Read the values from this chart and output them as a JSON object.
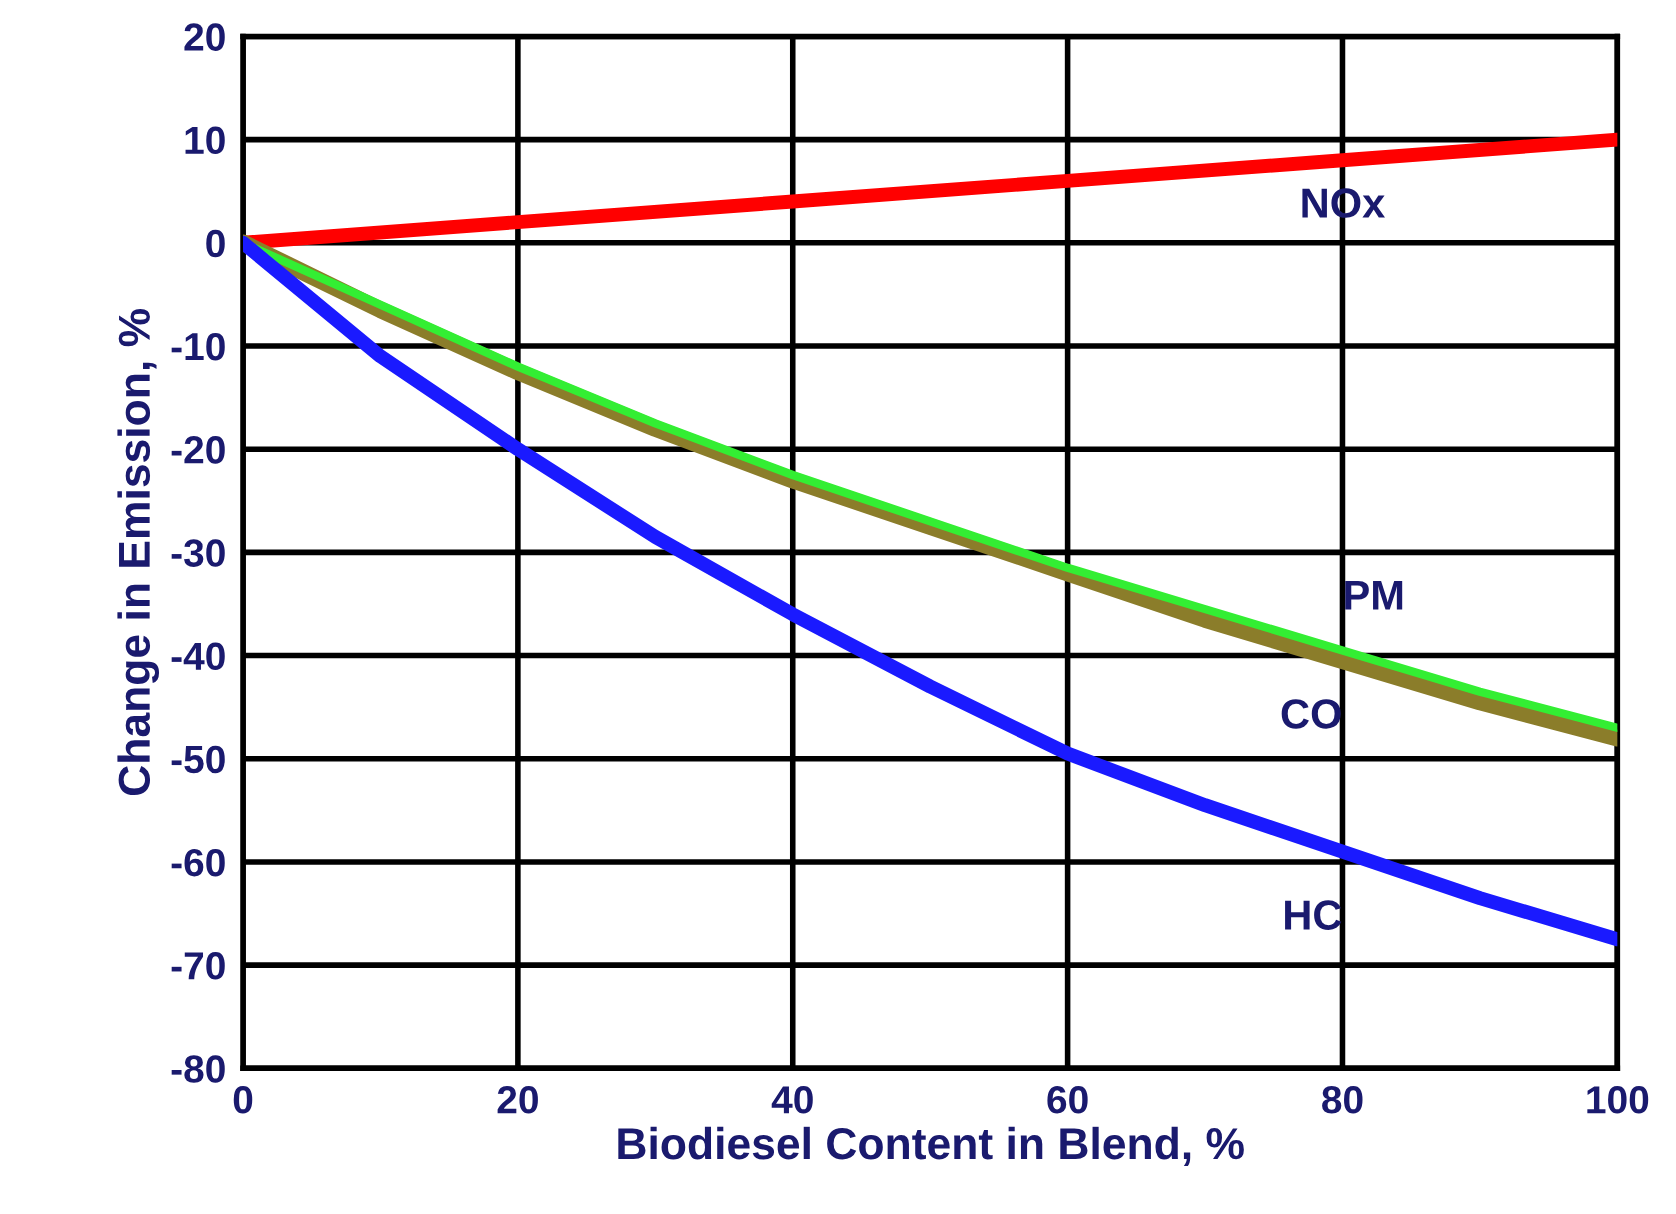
{
  "chart_data": {
    "type": "line",
    "xlabel": "Biodiesel Content in Blend, %",
    "ylabel": "Change in Emission, %",
    "xlim": [
      0,
      100
    ],
    "xticks": [
      0,
      20,
      40,
      60,
      80,
      100
    ],
    "ylim": [
      -80,
      20
    ],
    "yticks": [
      -80,
      -70,
      -60,
      -50,
      -40,
      -30,
      -20,
      -10,
      0,
      10,
      20
    ],
    "grid": true,
    "marker": "none",
    "line_style": "solid",
    "series": [
      {
        "name": "NOx",
        "color": "#ff0000",
        "x": [
          0,
          20,
          40,
          60,
          80,
          100
        ],
        "values": [
          0,
          2,
          4,
          6,
          8,
          10
        ]
      },
      {
        "name": "CO",
        "color": "#8b7d2a",
        "x": [
          0,
          10,
          20,
          30,
          40,
          50,
          60,
          70,
          80,
          90,
          100
        ],
        "values": [
          0,
          -6.5,
          -12.5,
          -18,
          -23,
          -27.5,
          -32,
          -36.5,
          -40.5,
          -44.5,
          -48
        ]
      },
      {
        "name": "PM",
        "color": "#33ee33",
        "x": [
          0,
          10,
          20,
          30,
          40,
          50,
          60,
          70,
          80,
          90,
          100
        ],
        "values": [
          0,
          -6,
          -12,
          -17.5,
          -22.5,
          -27,
          -31.5,
          -35.5,
          -39.5,
          -43.5,
          -47
        ]
      },
      {
        "name": "HC",
        "color": "#1a1aff",
        "x": [
          0,
          10,
          20,
          30,
          40,
          50,
          60,
          70,
          80,
          90,
          100
        ],
        "values": [
          0,
          -11,
          -20,
          -28.5,
          -36,
          -43,
          -49.5,
          -54.5,
          -59,
          -63.5,
          -67.5
        ]
      }
    ]
  }
}
